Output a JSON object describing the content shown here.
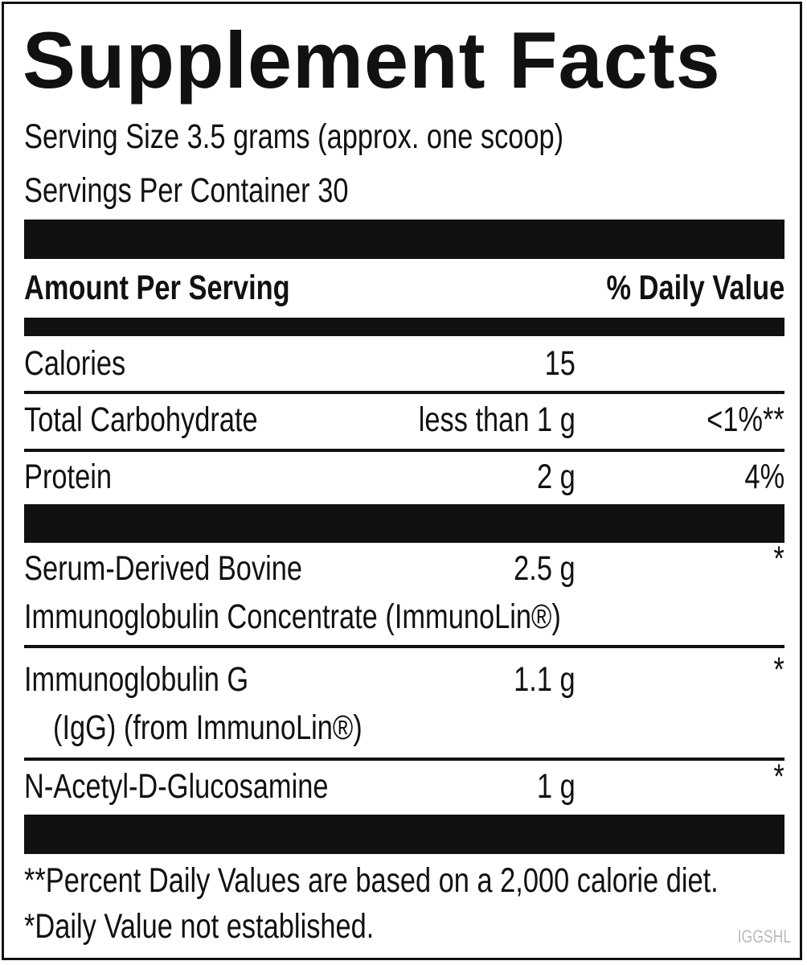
{
  "title": "Supplement Facts",
  "serving_size": "Serving Size 3.5 grams (approx. one scoop)",
  "servings_per_container": "Servings Per Container 30",
  "header": {
    "amount": "Amount Per Serving",
    "daily_value": "% Daily Value"
  },
  "rows": [
    {
      "name": [
        "Calories"
      ],
      "amount": "15"
    },
    {
      "name": [
        "Total Carbohydrate"
      ],
      "amount": "less than 1 g",
      "daily_value": "<1%**"
    },
    {
      "name": [
        "Protein"
      ],
      "amount": "2 g",
      "daily_value": "4%"
    },
    {
      "name": [
        "Serum-Derived Bovine",
        "Immunoglobulin Concentrate (ImmunoLin®)"
      ],
      "amount": "2.5 g",
      "daily_value": "*"
    },
    {
      "name": [
        "Immunoglobulin G",
        "(IgG) (from ImmunoLin®)"
      ],
      "amount": "1.1 g",
      "daily_value": "*"
    },
    {
      "name": [
        "N-Acetyl-D-Glucosamine"
      ],
      "amount": "1 g",
      "daily_value": "*"
    }
  ],
  "footnotes": [
    "**Percent Daily Values are based on a 2,000 calorie diet.",
    "*Daily Value not established."
  ],
  "code": "IGGSHL"
}
